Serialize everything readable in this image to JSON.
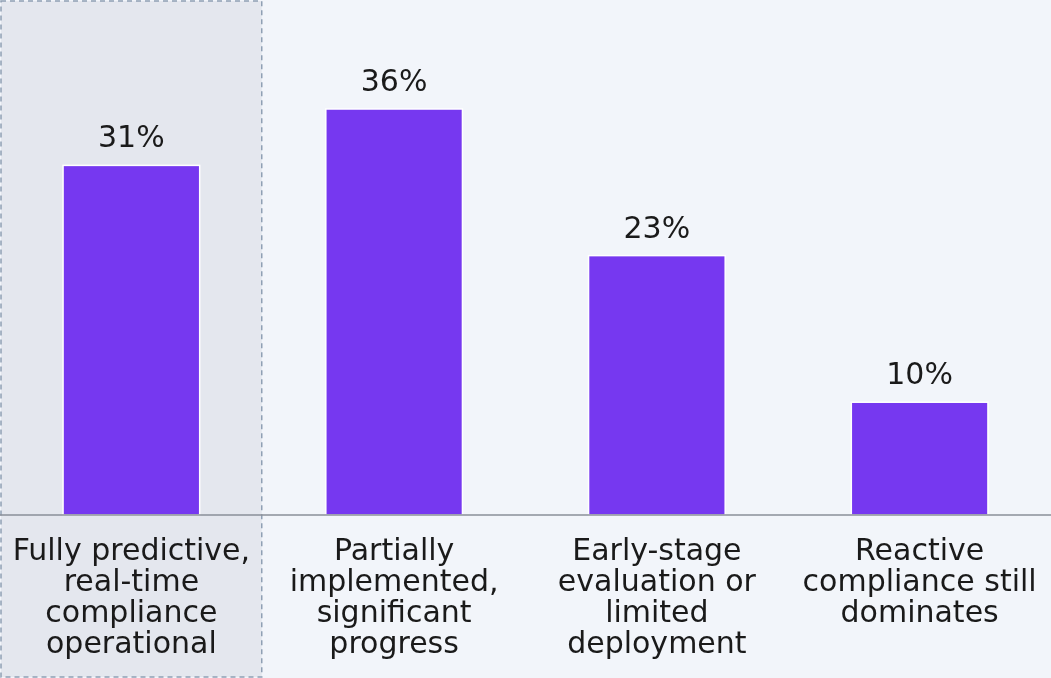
{
  "chart_data": {
    "type": "bar",
    "categories": [
      "Fully predictive, real-time compliance operational",
      "Partially implemented, significant progress",
      "Early-stage evaluation or limited deployment",
      "Reactive compliance still dominates"
    ],
    "values": [
      31,
      36,
      23,
      10
    ],
    "color": "#7638f0",
    "value_labels": [
      "31%",
      "36%",
      "23%",
      "10%"
    ],
    "bands": [
      {
        "axis": "x",
        "from": "Fully predictive, real-time compliance operational",
        "to": "Fully predictive, real-time compliance operational",
        "color": "#e4e7ee"
      }
    ]
  }
}
